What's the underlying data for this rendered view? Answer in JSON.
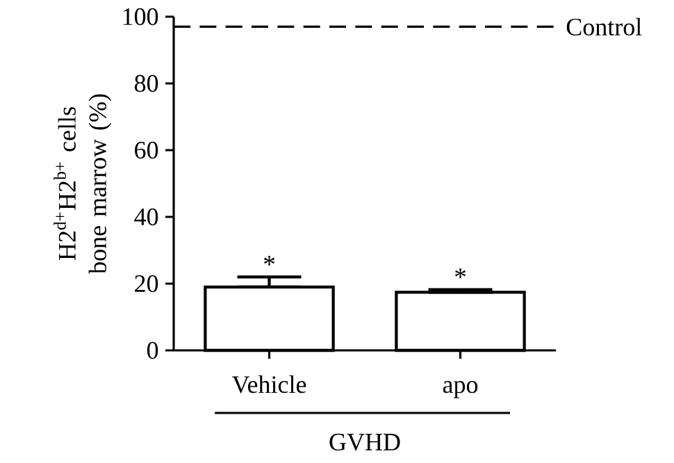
{
  "chart_data": {
    "type": "bar",
    "ylabel": "H2$^{d+}$H2$^{b+}$ cells bone marrow (%)",
    "categories": [
      "Vehicle",
      "apo"
    ],
    "values": [
      19,
      17.4
    ],
    "errors": [
      [
        19,
        22
      ],
      [
        17.4,
        18.2
      ]
    ],
    "color": "#ffffff",
    "ylim": [
      0,
      100
    ],
    "yticks": [
      0,
      20,
      40,
      60,
      80,
      100
    ],
    "ref_lines": [
      {
        "axis": "y",
        "value": 97,
        "label": "Control",
        "line_style": "dashed",
        "color": "#000000"
      }
    ],
    "annotations": [
      {
        "text": "*",
        "x": "Vehicle",
        "y": 22
      },
      {
        "text": "*",
        "x": "apo",
        "y": 18.2
      },
      "GVHD"
    ],
    "grid": false
  }
}
